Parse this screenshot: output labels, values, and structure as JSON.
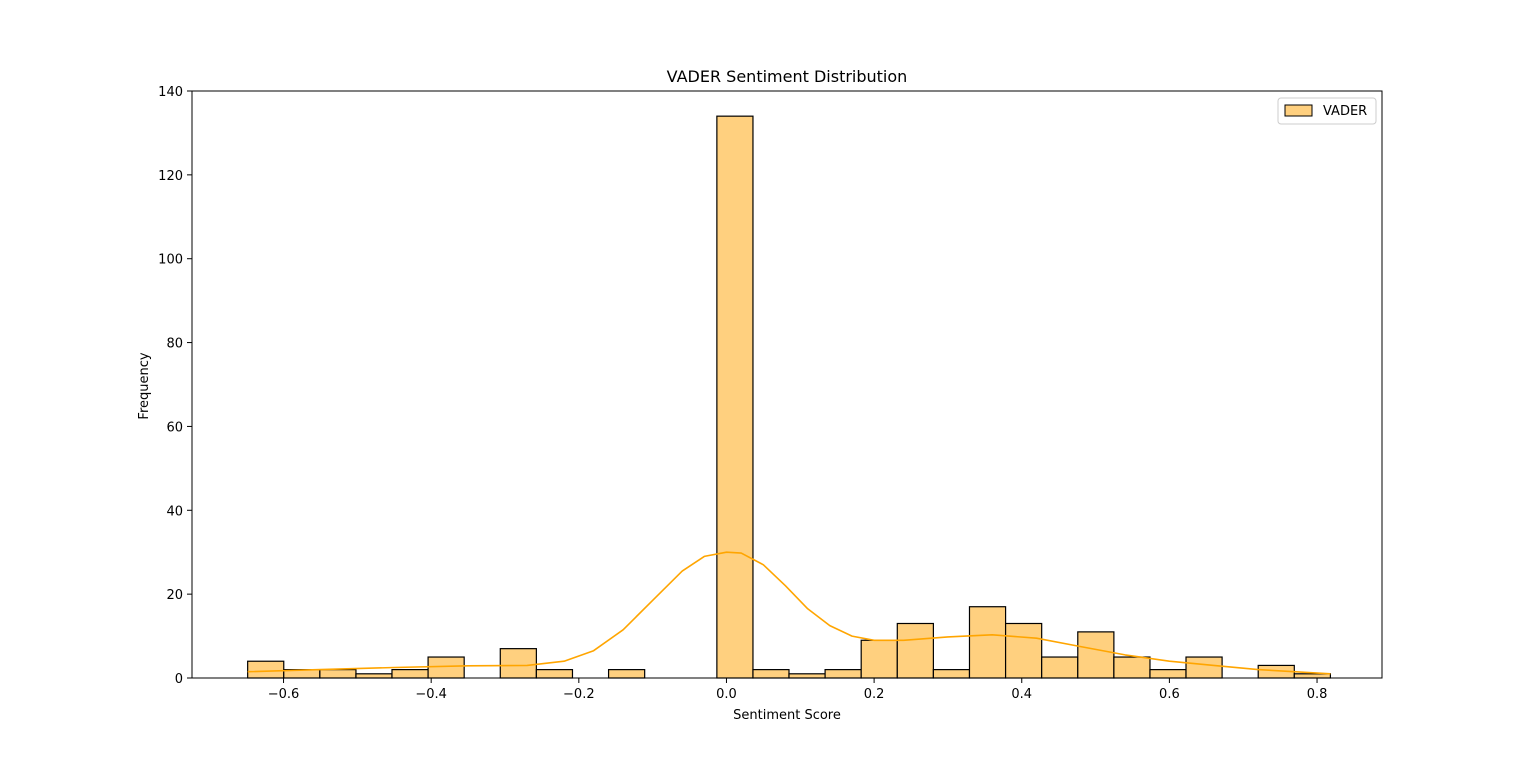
{
  "chart_data": {
    "type": "bar",
    "title": "VADER Sentiment Distribution",
    "xlabel": "Sentiment Score",
    "ylabel": "Frequency",
    "xlim": [
      -0.724,
      0.888
    ],
    "ylim": [
      0,
      140
    ],
    "xticks": [
      -0.6,
      -0.4,
      -0.2,
      0.0,
      0.2,
      0.4,
      0.6,
      0.8
    ],
    "xtick_labels": [
      "−0.6",
      "−0.4",
      "−0.2",
      "0.0",
      "0.2",
      "0.4",
      "0.6",
      "0.8"
    ],
    "yticks": [
      0,
      20,
      40,
      60,
      80,
      100,
      120,
      140
    ],
    "ytick_labels": [
      "0",
      "20",
      "40",
      "60",
      "80",
      "100",
      "120",
      "140"
    ],
    "legend": {
      "position": "top-right",
      "entries": [
        "VADER"
      ]
    },
    "grid": false,
    "series": [
      {
        "name": "VADER",
        "bin_edges": [
          -0.6486,
          -0.5997,
          -0.5508,
          -0.5019,
          -0.4531,
          -0.4042,
          -0.3553,
          -0.3064,
          -0.2575,
          -0.2086,
          -0.1597,
          -0.1108,
          -0.0619,
          -0.013,
          0.0359,
          0.0847,
          0.1336,
          0.1825,
          0.2314,
          0.2803,
          0.3292,
          0.3781,
          0.427,
          0.4759,
          0.5248,
          0.5737,
          0.6225,
          0.6714,
          0.7203,
          0.7692,
          0.8181
        ],
        "counts": [
          4,
          2,
          2,
          1,
          2,
          5,
          0,
          7,
          2,
          0,
          2,
          0,
          0,
          134,
          2,
          1,
          2,
          9,
          13,
          2,
          17,
          13,
          5,
          11,
          5,
          2,
          5,
          0,
          3,
          1
        ],
        "kde": {
          "x": [
            -0.6486,
            -0.55,
            -0.45,
            -0.35,
            -0.27,
            -0.22,
            -0.18,
            -0.14,
            -0.1,
            -0.06,
            -0.03,
            0.0,
            0.02,
            0.05,
            0.08,
            0.11,
            0.14,
            0.17,
            0.2,
            0.24,
            0.3,
            0.36,
            0.42,
            0.48,
            0.54,
            0.6,
            0.66,
            0.72,
            0.8181
          ],
          "y": [
            1.5,
            2.0,
            2.5,
            2.9,
            3.0,
            4.0,
            6.5,
            11.5,
            18.5,
            25.5,
            29.0,
            30.0,
            29.8,
            27.0,
            22.0,
            16.5,
            12.5,
            10.0,
            9.0,
            9.0,
            9.8,
            10.3,
            9.5,
            7.5,
            5.5,
            4.0,
            3.0,
            2.0,
            1.0
          ]
        }
      }
    ],
    "colors": {
      "bar_fill": "#ffd07f",
      "bar_edge": "#000000",
      "kde_line": "#ffa500",
      "axes": "#000000"
    }
  }
}
